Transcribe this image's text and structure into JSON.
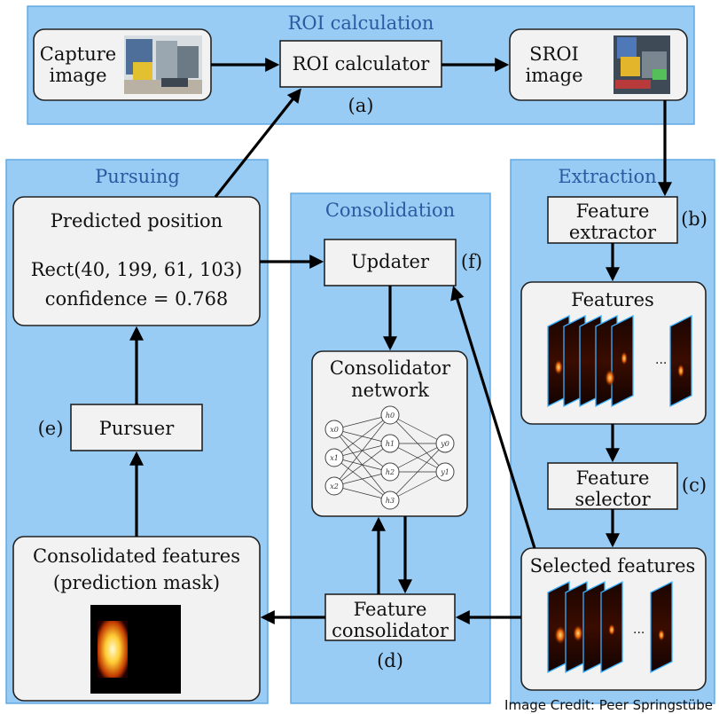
{
  "panels": {
    "roi": "ROI calculation",
    "pursuing": "Pursuing",
    "consolidation": "Consolidation",
    "extraction": "Extraction"
  },
  "boxes": {
    "capture": [
      "Capture",
      "image"
    ],
    "roi_calculator": "ROI calculator",
    "sroi": [
      "SROI",
      "image"
    ],
    "feature_extractor": [
      "Feature",
      "extractor"
    ],
    "features": "Features",
    "feature_selector": [
      "Feature",
      "selector"
    ],
    "selected_features": "Selected features",
    "feature_consolidator": [
      "Feature",
      "consolidator"
    ],
    "updater": "Updater",
    "consolidator_network": [
      "Consolidator",
      "network"
    ],
    "predicted_position": {
      "title": "Predicted position",
      "rect": "Rect(40, 199, 61, 103)",
      "confidence": "confidence = 0.768"
    },
    "pursuer": "Pursuer",
    "consolidated_features": [
      "Consolidated features",
      "(prediction mask)"
    ]
  },
  "markers": {
    "a": "(a)",
    "b": "(b)",
    "c": "(c)",
    "d": "(d)",
    "e": "(e)",
    "f": "(f)"
  },
  "network_nodes": {
    "inputs": [
      "x0",
      "x1",
      "x2"
    ],
    "hidden": [
      "h0",
      "h1",
      "h2",
      "h3"
    ],
    "outputs": [
      "y0",
      "y1"
    ]
  },
  "credit": "Image Credit: Peer Springstübe"
}
